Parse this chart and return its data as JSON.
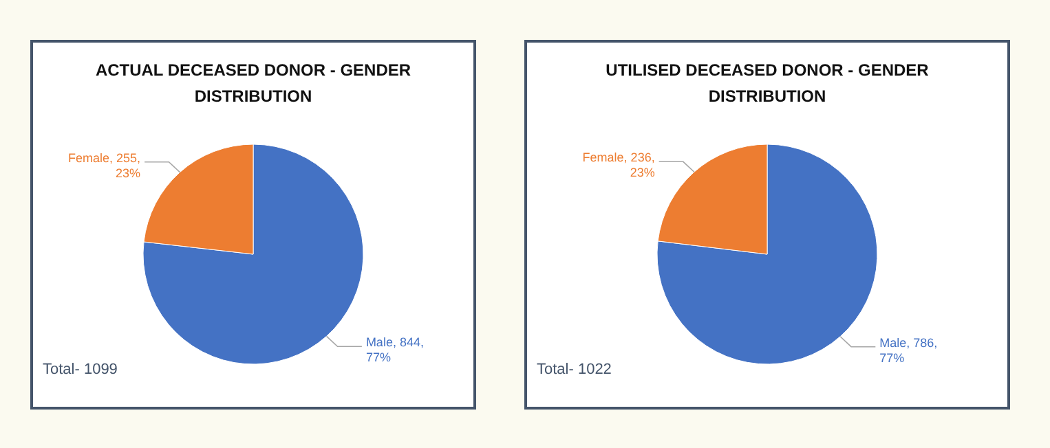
{
  "chart_data": [
    {
      "type": "pie",
      "title": "ACTUAL DECEASED DONOR - GENDER DISTRIBUTION",
      "categories": [
        "Male",
        "Female"
      ],
      "values": [
        844,
        255
      ],
      "colors": [
        "#4472c4",
        "#ed7d31"
      ],
      "value_labels": [
        "844, 77%",
        "255, 23%"
      ],
      "annotations": [
        "Total- 1099"
      ]
    },
    {
      "type": "pie",
      "title": "UTILISED DECEASED DONOR - GENDER DISTRIBUTION",
      "categories": [
        "Male",
        "Female"
      ],
      "values": [
        786,
        236
      ],
      "colors": [
        "#4472c4",
        "#ed7d31"
      ],
      "value_labels": [
        "786, 77%",
        "236, 23%"
      ],
      "annotations": [
        "Total- 1022"
      ]
    }
  ]
}
